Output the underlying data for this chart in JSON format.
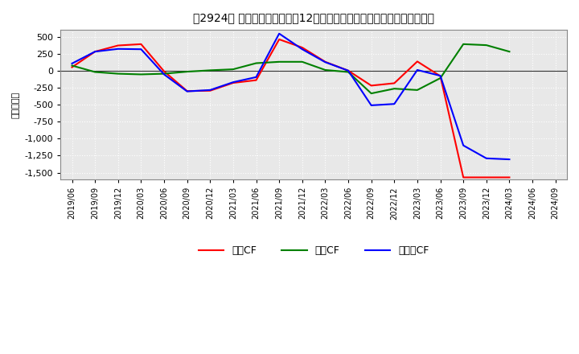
{
  "title": "［2924］ キャッシュフローの12か月移動合計の対前年同期増減額の推移",
  "ylabel": "（百万円）",
  "background_color": "#ffffff",
  "plot_bg_color": "#e8e8e8",
  "grid_color": "#ffffff",
  "x_labels": [
    "2019/06",
    "2019/09",
    "2019/12",
    "2020/03",
    "2020/06",
    "2020/09",
    "2020/12",
    "2021/03",
    "2021/06",
    "2021/09",
    "2021/12",
    "2022/03",
    "2022/06",
    "2022/09",
    "2022/12",
    "2023/03",
    "2023/06",
    "2023/09",
    "2023/12",
    "2024/03",
    "2024/06",
    "2024/09"
  ],
  "営業CF": [
    50,
    280,
    370,
    390,
    -10,
    -300,
    -295,
    -180,
    -140,
    460,
    340,
    130,
    0,
    -220,
    -185,
    135,
    -80,
    -1570,
    -1570,
    -1570,
    null,
    null
  ],
  "投資CF": [
    75,
    -20,
    -45,
    -55,
    -45,
    -15,
    5,
    20,
    110,
    130,
    130,
    10,
    -20,
    -335,
    -265,
    -285,
    -110,
    390,
    375,
    280,
    null,
    null
  ],
  "フリーCF": [
    105,
    280,
    320,
    315,
    -55,
    -305,
    -285,
    -170,
    -95,
    545,
    315,
    125,
    0,
    -510,
    -490,
    10,
    -75,
    -1100,
    -1290,
    -1305,
    null,
    null
  ],
  "colors": {
    "営業CF": "#ff0000",
    "投資CF": "#008000",
    "フリーCF": "#0000ff"
  },
  "ylim": [
    -1600,
    600
  ],
  "yticks": [
    500,
    250,
    0,
    -250,
    -500,
    -750,
    -1000,
    -1250,
    -1500
  ],
  "legend_labels": [
    "営業CF",
    "投資CF",
    "フリーCF"
  ],
  "legend_display": [
    "営業CF",
    "投資CF",
    "フリーCF"
  ]
}
